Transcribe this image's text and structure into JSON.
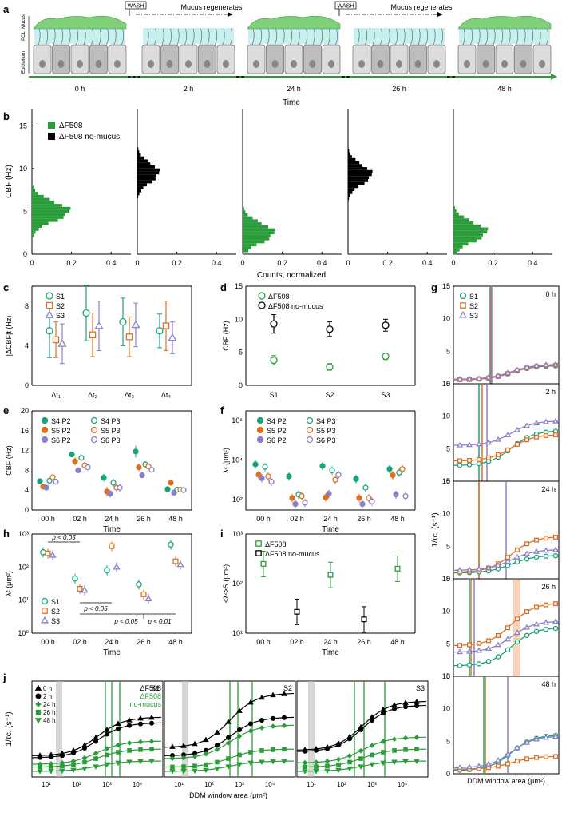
{
  "colors": {
    "green": "#2a9d3a",
    "teal": "#1aa37a",
    "orange": "#e07020",
    "purple": "#8a7fc8",
    "black": "#000000",
    "mucus": "#7fd07a",
    "pcl": "#bff0ee",
    "cell": "#dcdcdc"
  },
  "panels": {
    "a": "a",
    "b": "b",
    "c": "c",
    "d": "d",
    "e": "e",
    "f": "f",
    "g": "g",
    "h": "h",
    "i": "i",
    "j": "j"
  },
  "panel_a": {
    "layer_labels": [
      "Epithelium",
      "PCL",
      "Mucus"
    ],
    "wash_label": "WASH",
    "regen_label": "Mucus regenerates",
    "timepoints": [
      "0 h",
      "2 h",
      "24 h",
      "26 h",
      "48 h"
    ],
    "axis_title": "Time",
    "mucus_present": [
      true,
      false,
      true,
      false,
      true
    ]
  },
  "chart_data": [
    {
      "id": "b",
      "type": "bar",
      "orientation": "horizontal histogram",
      "ylabel": "CBF (Hz)",
      "xlabel": "Counts, normalized",
      "ylim": [
        0,
        17
      ],
      "yticks": [
        "0",
        "5",
        "10",
        "15"
      ],
      "xticks": [
        "0",
        "0.2",
        "0.4"
      ],
      "legend": [
        "ΔF508",
        "ΔF508 no-mucus"
      ],
      "subpanels": [
        {
          "time": "0 h",
          "series": "ΔF508",
          "center": 5.0,
          "peak": 0.19
        },
        {
          "time": "2 h",
          "series": "ΔF508 no-mucus",
          "center": 9.5,
          "peak": 0.11
        },
        {
          "time": "24 h",
          "series": "ΔF508",
          "center": 2.5,
          "peak": 0.16
        },
        {
          "time": "26 h",
          "series": "ΔF508 no-mucus",
          "center": 9.3,
          "peak": 0.12
        },
        {
          "time": "48 h",
          "series": "ΔF508",
          "center": 2.6,
          "peak": 0.17
        }
      ]
    },
    {
      "id": "c",
      "type": "scatter",
      "ylabel": "|ΔCBF|t (Hz)",
      "ylim": [
        0,
        10
      ],
      "yticks": [
        "0",
        "4",
        "8"
      ],
      "categories": [
        "Δt1",
        "Δt2",
        "Δt3",
        "Δt4"
      ],
      "series": [
        {
          "name": "S1",
          "values": [
            5.5,
            7.3,
            6.4,
            5.5
          ],
          "err": [
            2.7,
            2.8,
            2.4,
            1.7
          ]
        },
        {
          "name": "S2",
          "values": [
            4.6,
            5.1,
            4.9,
            6.0
          ],
          "err": [
            1.8,
            2.2,
            2.0,
            2.5
          ]
        },
        {
          "name": "S3",
          "values": [
            4.2,
            6.0,
            6.1,
            4.8
          ],
          "err": [
            2.0,
            2.5,
            2.2,
            1.6
          ]
        }
      ]
    },
    {
      "id": "d",
      "type": "scatter",
      "ylabel": "CBF (Hz)",
      "ylim": [
        0,
        15
      ],
      "yticks": [
        "0",
        "5",
        "10",
        "15"
      ],
      "categories": [
        "S1",
        "S2",
        "S3"
      ],
      "series": [
        {
          "name": "ΔF508",
          "values": [
            3.8,
            2.8,
            4.4
          ],
          "err": [
            0.7,
            0.5,
            0.5
          ]
        },
        {
          "name": "ΔF508 no-mucus",
          "values": [
            9.3,
            8.5,
            9.1
          ],
          "err": [
            1.4,
            1.1,
            0.9
          ]
        }
      ]
    },
    {
      "id": "e",
      "type": "scatter",
      "ylabel": "CBF (Hz)",
      "xlabel": "Time",
      "ylim": [
        0,
        20
      ],
      "yticks": [
        "0",
        "4",
        "8",
        "12",
        "16",
        "20"
      ],
      "categories": [
        "00 h",
        "02 h",
        "24 h",
        "26 h",
        "48 h"
      ],
      "series": [
        {
          "name": "S4 P2",
          "values": [
            5.8,
            11.2,
            6.5,
            11.8,
            4.2
          ],
          "err": [
            0.3,
            0.5,
            0.8,
            1.2,
            0.4
          ]
        },
        {
          "name": "S5 P2",
          "values": [
            4.7,
            9.8,
            3.7,
            8.6,
            5.5
          ],
          "err": [
            0.3,
            0.8,
            1.0,
            0.8,
            0.4
          ]
        },
        {
          "name": "S6 P2",
          "values": [
            4.5,
            8.0,
            3.3,
            7.0,
            3.5
          ],
          "err": [
            0.3,
            0.6,
            0.8,
            0.5,
            0.3
          ]
        },
        {
          "name": "S4 P3",
          "values": [
            5.9,
            10.5,
            5.5,
            9.2,
            4.1
          ],
          "err": [
            0.3,
            0.5,
            0.8,
            0.6,
            0.4
          ]
        },
        {
          "name": "S5 P3",
          "values": [
            6.6,
            9.0,
            4.5,
            8.8,
            4.1
          ],
          "err": [
            0.3,
            0.7,
            0.8,
            0.6,
            0.4
          ]
        },
        {
          "name": "S6 P3",
          "values": [
            5.7,
            8.6,
            4.5,
            8.1,
            4.0
          ],
          "err": [
            0.3,
            0.6,
            0.8,
            0.5,
            0.3
          ]
        }
      ]
    },
    {
      "id": "f",
      "type": "scatter",
      "ylabel": "λ² (μm²)",
      "xlabel": "Time",
      "yscale": "log",
      "ylim": [
        30,
        3000000
      ],
      "yticks": [
        "10²",
        "10⁴",
        "10⁶"
      ],
      "categories": [
        "00 h",
        "02 h",
        "24 h",
        "26 h",
        "48 h"
      ],
      "series": [
        {
          "name": "S4 P2",
          "values": [
            6000,
            1500,
            5000,
            1100,
            3500
          ]
        },
        {
          "name": "S5 P2",
          "values": [
            1800,
            120,
            130,
            120,
            1700
          ]
        },
        {
          "name": "S6 P2",
          "values": [
            1200,
            60,
            200,
            60,
            180
          ]
        },
        {
          "name": "S4 P3",
          "values": [
            4500,
            180,
            3000,
            400,
            2300
          ]
        },
        {
          "name": "S5 P3",
          "values": [
            1500,
            150,
            1000,
            120,
            3500
          ]
        },
        {
          "name": "S6 P3",
          "values": [
            800,
            70,
            1800,
            80,
            150
          ]
        }
      ]
    },
    {
      "id": "h",
      "type": "scatter",
      "ylabel": "λ² (μm²)",
      "xlabel": "Time",
      "yscale": "log",
      "ylim": [
        1,
        1000
      ],
      "yticks": [
        "10⁰",
        "10¹",
        "10²",
        "10³"
      ],
      "categories": [
        "00 h",
        "02 h",
        "24 h",
        "26 h",
        "48 h"
      ],
      "series": [
        {
          "name": "S1",
          "values": [
            280,
            45,
            80,
            30,
            480
          ]
        },
        {
          "name": "S2",
          "values": [
            260,
            22,
            430,
            15,
            150
          ]
        },
        {
          "name": "S3",
          "values": [
            230,
            20,
            100,
            11,
            120
          ]
        }
      ],
      "annotations": [
        "p < 0.05",
        "p < 0.05",
        "p < 0.05",
        "p < 0.01"
      ]
    },
    {
      "id": "i",
      "type": "scatter",
      "ylabel": "<λ²>S (μm²)",
      "xlabel": "Time",
      "yscale": "log",
      "ylim": [
        10,
        1000
      ],
      "yticks": [
        "10¹",
        "10²",
        "10³"
      ],
      "categories": [
        "00 h",
        "02 h",
        "24 h",
        "26 h",
        "48 h"
      ],
      "series": [
        {
          "name": "ΔF508",
          "points": [
            [
              0,
              250
            ],
            [
              2,
              150
            ],
            [
              4,
              200
            ]
          ]
        },
        {
          "name": "ΔF508 no-mucus",
          "points": [
            [
              1,
              27
            ],
            [
              3,
              19
            ]
          ]
        }
      ]
    },
    {
      "id": "g",
      "type": "line",
      "ylabel": "1/τc, (s⁻¹)",
      "xlabel": "DDM window area (μm²)",
      "yticks": [
        "0",
        "5",
        "10",
        "15"
      ],
      "legend": [
        "S1",
        "S2",
        "S3"
      ],
      "subpanels": [
        {
          "label": "0 h",
          "plateau": [
            2.8,
            2.9,
            3.0
          ],
          "base": [
            0.6,
            0.6,
            0.7
          ],
          "ylim": [
            0,
            15
          ]
        },
        {
          "label": "2 h",
          "plateau": [
            7.8,
            7.2,
            9.3
          ],
          "base": [
            2.4,
            3.1,
            5.5
          ],
          "ylim": [
            0,
            15
          ]
        },
        {
          "label": "24 h",
          "plateau": [
            3.6,
            6.5,
            4.5
          ],
          "base": [
            0.9,
            1.0,
            1.3
          ],
          "ylim": [
            0,
            15
          ]
        },
        {
          "label": "26 h",
          "plateau": [
            7.5,
            11.3,
            8.5
          ],
          "base": [
            1.6,
            4.7,
            3.7
          ],
          "ylim": [
            0,
            15
          ]
        },
        {
          "label": "48 h",
          "plateau": [
            6.0,
            2.7,
            5.8
          ],
          "base": [
            0.5,
            0.7,
            0.9
          ],
          "ylim": [
            0,
            15
          ]
        }
      ]
    },
    {
      "id": "j",
      "type": "line",
      "ylabel": "1/τc, (s⁻¹)",
      "xlabel": "DDM window area (μm²)",
      "xscale": "log",
      "xticks": [
        "10¹",
        "10²",
        "10³",
        "10⁴"
      ],
      "legend_markers": [
        "0 h",
        "2 h",
        "24 h",
        "26 h",
        "48 h"
      ],
      "legend_text": [
        "ΔF508",
        "ΔF508",
        "no-mucus"
      ],
      "subpanels": [
        {
          "label": "S1",
          "plateaus": [
            7.5,
            6.8,
            4.5,
            3.5,
            2.0
          ]
        },
        {
          "label": "S2",
          "plateaus": [
            10.5,
            7.5,
            6.5,
            3.5,
            2.0
          ]
        },
        {
          "label": "S3",
          "plateaus": [
            9.5,
            9.0,
            5.0,
            3.5,
            2.0
          ]
        }
      ]
    }
  ]
}
